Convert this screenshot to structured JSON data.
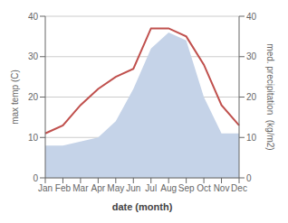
{
  "chart_data": {
    "type": "line",
    "xlabel": "date (month)",
    "ylabel": "max temp (C)",
    "y2label": "med. precipitation  (kg/m2)",
    "categories": [
      "Jan",
      "Feb",
      "Mar",
      "Apr",
      "May",
      "Jun",
      "Jul",
      "Aug",
      "Sep",
      "Oct",
      "Nov",
      "Dec"
    ],
    "series": [
      {
        "type": "area",
        "color": "#c5d3e8",
        "axis": "y2",
        "values": [
          8,
          8,
          9,
          10,
          14,
          22,
          32,
          36,
          34,
          20,
          11,
          11
        ]
      },
      {
        "type": "line",
        "color": "#c0504d",
        "values": [
          11,
          13,
          18,
          22,
          25,
          27,
          37,
          37,
          35,
          28,
          18,
          13
        ]
      }
    ],
    "ylim": [
      0,
      40
    ],
    "yticks": [
      0,
      10,
      20,
      30,
      40
    ],
    "y2lim": [
      0,
      40
    ],
    "y2ticks": [
      0,
      10,
      20,
      30,
      40
    ],
    "grid": true
  }
}
